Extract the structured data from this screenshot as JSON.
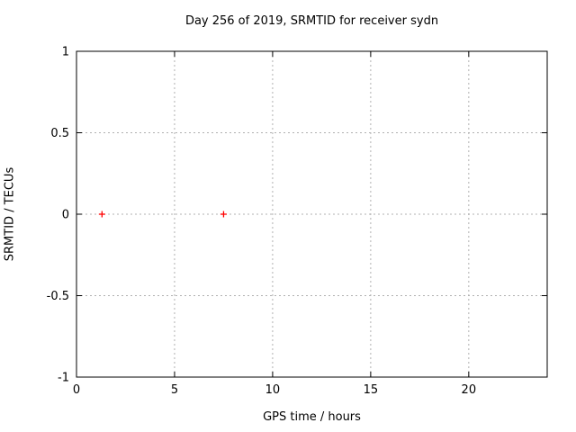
{
  "chart_data": {
    "type": "scatter",
    "title": "Day 256 of 2019, SRMTID for receiver sydn",
    "xlabel": "GPS time / hours",
    "ylabel": "SRMTID / TECUs",
    "xlim": [
      0,
      24
    ],
    "ylim": [
      -1,
      1
    ],
    "xticks": [
      0,
      5,
      10,
      15,
      20
    ],
    "xtick_labels": [
      "0",
      "5",
      "10",
      "15",
      "20"
    ],
    "yticks": [
      -1,
      -0.5,
      0,
      0.5,
      1
    ],
    "ytick_labels": [
      "-1",
      "-0.5",
      "0",
      "0.5",
      "1"
    ],
    "grid": true,
    "legend": "none",
    "colors": {
      "border": "#000000",
      "grid": "#b0b0b0",
      "marker": "#ff0000"
    },
    "series": [
      {
        "name": "SRMTID",
        "marker": "plus",
        "points": [
          [
            1.3,
            0.0
          ],
          [
            7.5,
            0.0
          ]
        ]
      }
    ]
  }
}
